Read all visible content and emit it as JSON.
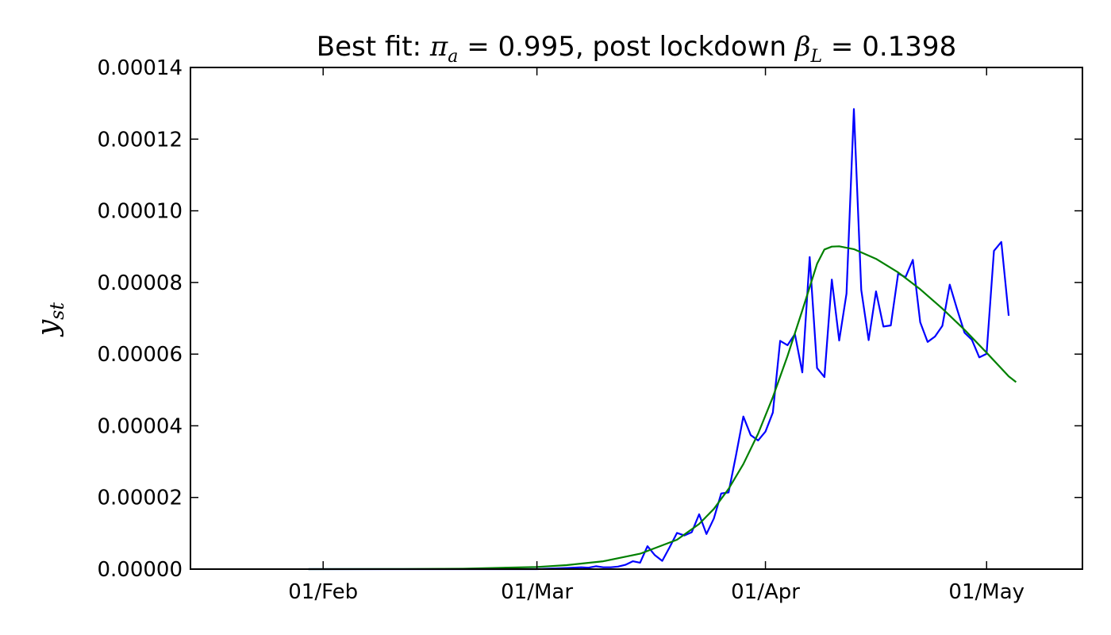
{
  "chart_data": {
    "type": "line",
    "title": {
      "prefix": "Best fit: ",
      "pi_symbol": "π",
      "pi_sub": "a",
      "pi_value": " = 0.995, post lockdown ",
      "beta_symbol": "β",
      "beta_sub": "L",
      "beta_value": " = 0.1398"
    },
    "ylabel": {
      "main": "y",
      "sub": "st"
    },
    "ylim": [
      0,
      0.00014
    ],
    "xlim": [
      "2020-01-14",
      "2020-05-14"
    ],
    "yticks": [
      0,
      2e-05,
      4e-05,
      6e-05,
      8e-05,
      0.0001,
      0.00012,
      0.00014
    ],
    "ytick_labels": [
      "0.00000",
      "0.00002",
      "0.00004",
      "0.00006",
      "0.00008",
      "0.00010",
      "0.00012",
      "0.00014"
    ],
    "xticks": [
      "2020-02-01",
      "2020-03-01",
      "2020-04-01",
      "2020-05-01"
    ],
    "xtick_labels": [
      "01/Feb",
      "01/Mar",
      "01/Apr",
      "01/May"
    ],
    "grid": false,
    "series": [
      {
        "color": "#0000ff",
        "points": [
          [
            "2020-01-30",
            0
          ],
          [
            "2020-03-01",
            0
          ],
          [
            "2020-03-05",
            3e-07
          ],
          [
            "2020-03-07",
            5e-07
          ],
          [
            "2020-03-08",
            4e-07
          ],
          [
            "2020-03-09",
            8e-07
          ],
          [
            "2020-03-10",
            5e-07
          ],
          [
            "2020-03-11",
            5e-07
          ],
          [
            "2020-03-12",
            7e-07
          ],
          [
            "2020-03-13",
            1.2e-06
          ],
          [
            "2020-03-14",
            2.2e-06
          ],
          [
            "2020-03-15",
            1.8e-06
          ],
          [
            "2020-03-16",
            6.4e-06
          ],
          [
            "2020-03-17",
            3.9e-06
          ],
          [
            "2020-03-18",
            2.3e-06
          ],
          [
            "2020-03-19",
            6.1e-06
          ],
          [
            "2020-03-20",
            1.01e-05
          ],
          [
            "2020-03-21",
            9.4e-06
          ],
          [
            "2020-03-22",
            1.03e-05
          ],
          [
            "2020-03-23",
            1.53e-05
          ],
          [
            "2020-03-24",
            9.8e-06
          ],
          [
            "2020-03-25",
            1.41e-05
          ],
          [
            "2020-03-26",
            2.11e-05
          ],
          [
            "2020-03-27",
            2.14e-05
          ],
          [
            "2020-03-28",
            3.17e-05
          ],
          [
            "2020-03-29",
            4.26e-05
          ],
          [
            "2020-03-30",
            3.74e-05
          ],
          [
            "2020-03-31",
            3.59e-05
          ],
          [
            "2020-04-01",
            3.84e-05
          ],
          [
            "2020-04-02",
            4.37e-05
          ],
          [
            "2020-04-03",
            6.37e-05
          ],
          [
            "2020-04-04",
            6.25e-05
          ],
          [
            "2020-04-05",
            6.56e-05
          ],
          [
            "2020-04-06",
            5.49e-05
          ],
          [
            "2020-04-07",
            8.71e-05
          ],
          [
            "2020-04-08",
            5.61e-05
          ],
          [
            "2020-04-09",
            5.36e-05
          ],
          [
            "2020-04-10",
            8.08e-05
          ],
          [
            "2020-04-11",
            6.38e-05
          ],
          [
            "2020-04-12",
            7.69e-05
          ],
          [
            "2020-04-13",
            0.0001284
          ],
          [
            "2020-04-14",
            7.79e-05
          ],
          [
            "2020-04-15",
            6.39e-05
          ],
          [
            "2020-04-16",
            7.75e-05
          ],
          [
            "2020-04-17",
            6.77e-05
          ],
          [
            "2020-04-18",
            6.8e-05
          ],
          [
            "2020-04-19",
            8.25e-05
          ],
          [
            "2020-04-20",
            8.15e-05
          ],
          [
            "2020-04-21",
            8.63e-05
          ],
          [
            "2020-04-22",
            6.89e-05
          ],
          [
            "2020-04-23",
            6.34e-05
          ],
          [
            "2020-04-24",
            6.49e-05
          ],
          [
            "2020-04-25",
            6.79e-05
          ],
          [
            "2020-04-26",
            7.94e-05
          ],
          [
            "2020-04-27",
            7.25e-05
          ],
          [
            "2020-04-28",
            6.6e-05
          ],
          [
            "2020-04-29",
            6.4e-05
          ],
          [
            "2020-04-30",
            5.91e-05
          ],
          [
            "2020-05-01",
            6.01e-05
          ],
          [
            "2020-05-02",
            8.88e-05
          ],
          [
            "2020-05-03",
            9.13e-05
          ],
          [
            "2020-05-04",
            7.07e-05
          ]
        ]
      },
      {
        "color": "#008000",
        "points": [
          [
            "2020-01-30",
            0
          ],
          [
            "2020-02-10",
            3e-08
          ],
          [
            "2020-02-20",
            1e-07
          ],
          [
            "2020-03-01",
            6e-07
          ],
          [
            "2020-03-05",
            1.1e-06
          ],
          [
            "2020-03-10",
            2.2e-06
          ],
          [
            "2020-03-15",
            4.3e-06
          ],
          [
            "2020-03-20",
            8.2e-06
          ],
          [
            "2020-03-23",
            1.26e-05
          ],
          [
            "2020-03-25",
            1.68e-05
          ],
          [
            "2020-03-27",
            2.24e-05
          ],
          [
            "2020-03-29",
            2.93e-05
          ],
          [
            "2020-03-31",
            3.78e-05
          ],
          [
            "2020-04-02",
            4.8e-05
          ],
          [
            "2020-04-04",
            5.95e-05
          ],
          [
            "2020-04-06",
            7.22e-05
          ],
          [
            "2020-04-08",
            8.52e-05
          ],
          [
            "2020-04-09",
            8.92e-05
          ],
          [
            "2020-04-10",
            9e-05
          ],
          [
            "2020-04-11",
            9.01e-05
          ],
          [
            "2020-04-13",
            8.93e-05
          ],
          [
            "2020-04-16",
            8.66e-05
          ],
          [
            "2020-04-19",
            8.28e-05
          ],
          [
            "2020-04-22",
            7.81e-05
          ],
          [
            "2020-04-25",
            7.27e-05
          ],
          [
            "2020-04-28",
            6.68e-05
          ],
          [
            "2020-05-01",
            6.04e-05
          ],
          [
            "2020-05-04",
            5.38e-05
          ],
          [
            "2020-05-05",
            5.22e-05
          ]
        ]
      }
    ]
  }
}
